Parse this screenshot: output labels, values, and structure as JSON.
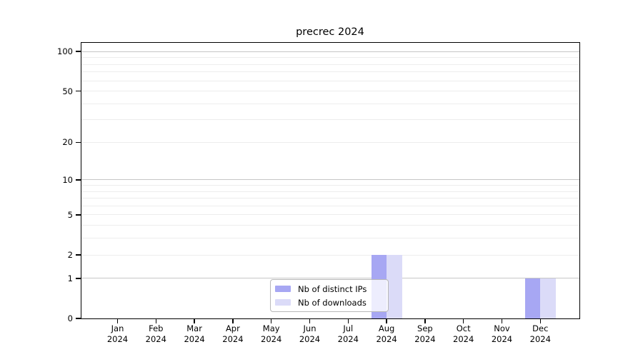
{
  "chart_data": {
    "type": "bar",
    "title": "precrec 2024",
    "categories": [
      "Jan 2024",
      "Feb 2024",
      "Mar 2024",
      "Apr 2024",
      "May 2024",
      "Jun 2024",
      "Jul 2024",
      "Aug 2024",
      "Sep 2024",
      "Oct 2024",
      "Nov 2024",
      "Dec 2024"
    ],
    "series": [
      {
        "name": "Nb of distinct IPs",
        "color": "#a7a7f3",
        "values": [
          0,
          0,
          0,
          0,
          0,
          0,
          0,
          2,
          0,
          0,
          0,
          1
        ]
      },
      {
        "name": "Nb of downloads",
        "color": "#dbdbf8",
        "values": [
          0,
          0,
          0,
          0,
          0,
          0,
          0,
          2,
          0,
          0,
          0,
          1
        ]
      }
    ],
    "xlabel": "",
    "ylabel": "",
    "y_scale": "log1p",
    "ylim": [
      0,
      116
    ],
    "y_tick_labels": [
      "100",
      "50",
      "20",
      "10",
      "5",
      "2",
      "1",
      "0"
    ],
    "y_gridline_values": [
      1,
      2,
      3,
      4,
      5,
      6,
      7,
      8,
      9,
      10,
      20,
      30,
      40,
      50,
      60,
      70,
      80,
      90,
      100
    ],
    "y_gridline_emphasis": [
      1,
      10,
      100
    ],
    "grid": "horizontal",
    "legend_position": "inside-bottom-center",
    "colors": {
      "bar_distinct_ips": "#a7a7f3",
      "bar_downloads": "#dbdbf8",
      "grid_minor": "#ededed",
      "grid_major": "#c6c6c6",
      "axis": "#000000",
      "legend_border": "#b8b8b8",
      "background": "#ffffff"
    }
  }
}
